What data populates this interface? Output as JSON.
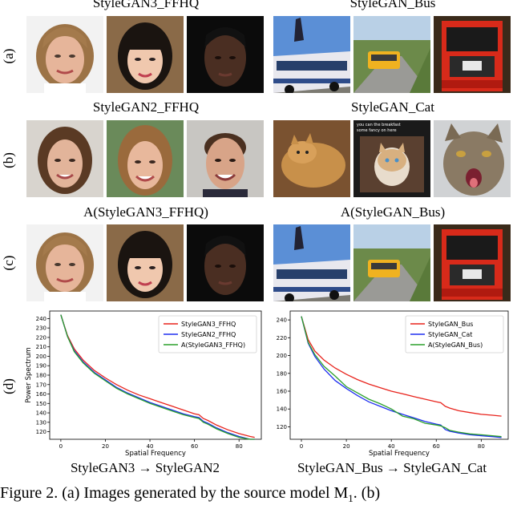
{
  "titles": {
    "row_a_left": "StyleGAN3_FFHQ",
    "row_a_right": "StyleGAN_Bus",
    "row_b_left": "StyleGAN2_FFHQ",
    "row_b_right": "StyleGAN_Cat",
    "row_c_left": "A(StyleGAN3_FFHQ)",
    "row_c_right": "A(StyleGAN_Bus)"
  },
  "row_labels": {
    "a": "(a)",
    "b": "(b)",
    "c": "(c)",
    "d": "(d)"
  },
  "images": {
    "a_left": [
      "face-blonde-woman",
      "face-asian-girl",
      "face-dark-woman"
    ],
    "a_right": [
      "bus-blue-white",
      "bus-yellow-road",
      "bus-red-front"
    ],
    "b_left": [
      "face-woman-brown-hair",
      "face-smiling-woman",
      "face-smiling-man"
    ],
    "b_right": [
      "cat-orange-lying",
      "cat-kitten-meme",
      "cat-tabby-yawn"
    ],
    "c_left": [
      "face-blonde-woman",
      "face-asian-girl",
      "face-dark-woman"
    ],
    "c_right": [
      "bus-blue-white",
      "bus-yellow-road",
      "bus-red-front"
    ]
  },
  "meme_text": "you can the breakfast\nsome fancy on here",
  "subcaptions": {
    "left": "StyleGAN3 → StyleGAN2",
    "right": "StyleGAN_Bus → StyleGAN_Cat"
  },
  "figure_caption": "Figure 2.   (a) Images generated by the source model M",
  "figure_caption_sub": "1",
  "figure_caption_end": ".   (b)",
  "colors": {
    "red": "#e8231c",
    "blue": "#1f2ff0",
    "green": "#2ca02c"
  },
  "chart_data": [
    {
      "type": "line",
      "xlabel": "Spatial Frequency",
      "ylabel": "Power Spectrum",
      "xlim": [
        -5,
        90
      ],
      "ylim": [
        112,
        248
      ],
      "xticks": [
        0,
        20,
        40,
        60,
        80
      ],
      "yticks": [
        120,
        130,
        140,
        150,
        160,
        170,
        180,
        190,
        200,
        210,
        220,
        230,
        240
      ],
      "legend_position": "top-right",
      "series": [
        {
          "name": "StyleGAN3_FFHQ",
          "color": "#e8231c",
          "x": [
            0,
            3,
            6,
            10,
            15,
            20,
            25,
            30,
            35,
            40,
            45,
            50,
            55,
            60,
            62,
            64,
            66,
            70,
            75,
            80,
            85,
            87
          ],
          "y": [
            244,
            222,
            208,
            196,
            185,
            177,
            170,
            164,
            159,
            155,
            151,
            147,
            143,
            139,
            138,
            134,
            132,
            127,
            122,
            118,
            115,
            114
          ]
        },
        {
          "name": "StyleGAN2_FFHQ",
          "color": "#1f2ff0",
          "x": [
            0,
            3,
            6,
            10,
            15,
            20,
            25,
            30,
            35,
            40,
            45,
            50,
            55,
            60,
            62,
            64,
            66,
            70,
            75,
            80,
            85,
            87
          ],
          "y": [
            244,
            221,
            206,
            194,
            183,
            175,
            167,
            161,
            156,
            151,
            147,
            143,
            139,
            136,
            135,
            131,
            129,
            124,
            119,
            115,
            112,
            112
          ]
        },
        {
          "name": "A(StyleGAN3_FFHQ)",
          "color": "#2ca02c",
          "x": [
            0,
            3,
            6,
            10,
            15,
            20,
            25,
            30,
            35,
            40,
            45,
            50,
            55,
            60,
            62,
            64,
            66,
            70,
            75,
            80,
            85,
            87
          ],
          "y": [
            244,
            221,
            205,
            193,
            182,
            174,
            166,
            160,
            155,
            150,
            146,
            142,
            138,
            135,
            134,
            130,
            128,
            123,
            118,
            114,
            112,
            112
          ]
        }
      ]
    },
    {
      "type": "line",
      "xlabel": "Spatial Frequency",
      "ylabel": "",
      "xlim": [
        -5,
        92
      ],
      "ylim": [
        106,
        250
      ],
      "xticks": [
        0,
        20,
        40,
        60,
        80
      ],
      "yticks": [
        120,
        140,
        160,
        180,
        200,
        220,
        240
      ],
      "legend_position": "top-right",
      "series": [
        {
          "name": "StyleGAN_Bus",
          "color": "#e8231c",
          "x": [
            0,
            3,
            6,
            10,
            15,
            20,
            25,
            30,
            35,
            40,
            45,
            50,
            55,
            60,
            62,
            64,
            66,
            70,
            75,
            80,
            85,
            89
          ],
          "y": [
            244,
            218,
            205,
            195,
            186,
            179,
            173,
            168,
            164,
            160,
            157,
            154,
            151,
            148,
            147,
            143,
            141,
            138,
            136,
            134,
            133,
            132
          ]
        },
        {
          "name": "StyleGAN_Cat",
          "color": "#1f2ff0",
          "x": [
            0,
            3,
            6,
            10,
            15,
            20,
            25,
            30,
            35,
            40,
            45,
            50,
            55,
            60,
            62,
            64,
            66,
            70,
            75,
            80,
            85,
            89
          ],
          "y": [
            244,
            214,
            199,
            185,
            172,
            163,
            155,
            148,
            143,
            138,
            134,
            130,
            126,
            123,
            122,
            117,
            115,
            113,
            111,
            110,
            109,
            108
          ]
        },
        {
          "name": "A(StyleGAN_Bus)",
          "color": "#2ca02c",
          "x": [
            0,
            3,
            6,
            10,
            15,
            20,
            25,
            30,
            35,
            40,
            45,
            50,
            55,
            60,
            62,
            64,
            66,
            70,
            75,
            80,
            85,
            89
          ],
          "y": [
            244,
            215,
            201,
            188,
            177,
            165,
            158,
            151,
            146,
            140,
            132,
            129,
            124,
            122,
            121,
            119,
            116,
            114,
            112,
            111,
            110,
            109
          ]
        }
      ]
    }
  ]
}
